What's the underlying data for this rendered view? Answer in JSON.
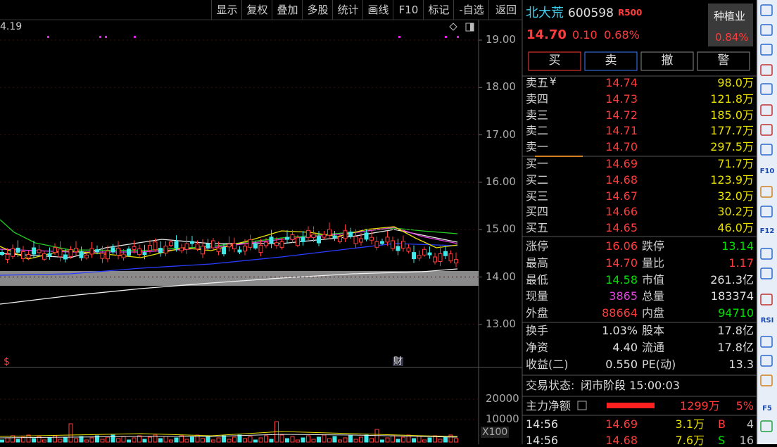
{
  "toolbar": [
    "显示",
    "复权",
    "叠加",
    "多股",
    "统计",
    "画线",
    "F10",
    "标记",
    "-自选",
    "返回"
  ],
  "chart": {
    "corner_label": "4.19",
    "price_ticks": [
      "19.00",
      "18.00",
      "17.00",
      "16.00",
      "15.00",
      "14.00",
      "13.00"
    ],
    "volume_ticks": [
      "20000",
      "10000"
    ],
    "volume_unit": "X100",
    "markers": [
      "$",
      "财"
    ]
  },
  "quote": {
    "name": "北大荒",
    "code": "600598",
    "badge": "R500",
    "sector": "种植业",
    "sector_change": "0.84%",
    "price": "14.70",
    "change": "0.10",
    "change_pct": "0.68%"
  },
  "buttons": [
    "买",
    "卖",
    "撤",
    "警"
  ],
  "currency_symbol": "¥",
  "sell": [
    {
      "label": "卖五",
      "price": "14.74",
      "volume": "98.0万"
    },
    {
      "label": "卖四",
      "price": "14.73",
      "volume": "121.8万"
    },
    {
      "label": "卖三",
      "price": "14.72",
      "volume": "185.0万"
    },
    {
      "label": "卖二",
      "price": "14.71",
      "volume": "177.7万"
    },
    {
      "label": "卖一",
      "price": "14.70",
      "volume": "297.5万"
    }
  ],
  "buy": [
    {
      "label": "买一",
      "price": "14.69",
      "volume": "71.7万"
    },
    {
      "label": "买二",
      "price": "14.68",
      "volume": "123.9万"
    },
    {
      "label": "买三",
      "price": "14.67",
      "volume": "32.0万"
    },
    {
      "label": "买四",
      "price": "14.66",
      "volume": "30.2万"
    },
    {
      "label": "买五",
      "price": "14.65",
      "volume": "46.0万"
    }
  ],
  "stats": [
    {
      "cells": [
        "涨停",
        "16.06",
        "跌停",
        "13.14"
      ],
      "colors": [
        "#ff3b3b",
        "#00e000"
      ]
    },
    {
      "cells": [
        "最高",
        "14.70",
        "量比",
        "1.17"
      ],
      "colors": [
        "#ff3b3b",
        "#ff3b3b"
      ]
    },
    {
      "cells": [
        "最低",
        "14.58",
        "市值",
        "261.3亿"
      ],
      "colors": [
        "#00e000",
        "#e0e0e0"
      ]
    },
    {
      "cells": [
        "现量",
        "3865",
        "总量",
        "183374"
      ],
      "colors": [
        "#e040e0",
        "#e0e0e0"
      ]
    },
    {
      "cells": [
        "外盘",
        "88664",
        "内盘",
        "94710"
      ],
      "colors": [
        "#ff3b3b",
        "#00e000"
      ]
    }
  ],
  "fundamentals": [
    [
      "换手",
      "1.03%",
      "股本",
      "17.8亿"
    ],
    [
      "净资",
      "4.40",
      "流通",
      "17.8亿"
    ],
    [
      "收益(二)",
      "0.550",
      "PE(动)",
      "13.3"
    ]
  ],
  "status": {
    "label": "交易状态:",
    "value": "闭市阶段 15:00:03"
  },
  "main_force": {
    "label": "主力净额",
    "amount": "1299万",
    "pct": "5%"
  },
  "ticks": [
    {
      "time": "14:56",
      "price": "14.69",
      "volume": "3.1万",
      "side": "B",
      "count": "4"
    },
    {
      "time": "14:56",
      "price": "14.68",
      "volume": "7.6万",
      "side": "S",
      "count": "16"
    }
  ],
  "sidebar": [
    "F10",
    "F12",
    "RSI",
    "F5"
  ]
}
